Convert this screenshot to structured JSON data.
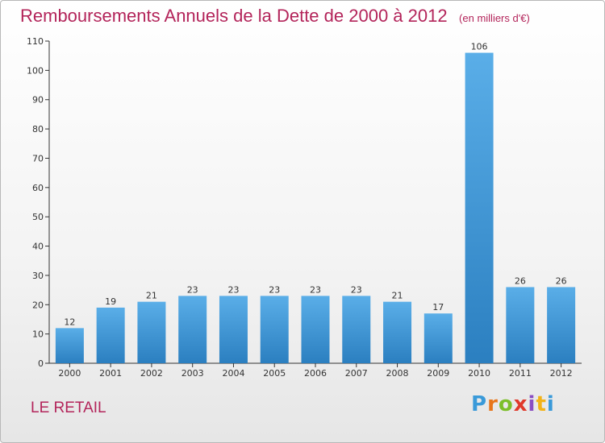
{
  "title": "Remboursements Annuels de la Dette de 2000 à 2012",
  "unit_label": "(en milliers d'€)",
  "commune": "LE RETAIL",
  "brand": {
    "letters": [
      "P",
      "r",
      "o",
      "x",
      "i",
      "t",
      "i"
    ],
    "colors": [
      "#3a9ad9",
      "#e8761a",
      "#7cbf2a",
      "#e0392b",
      "#8a4ec2",
      "#f2b317",
      "#3a9ad9"
    ]
  },
  "colors": {
    "bar_top": "#5aaee8",
    "bar_bottom": "#2b7fc0",
    "title": "#b3245a",
    "axis": "#333333"
  },
  "chart_data": {
    "type": "bar",
    "title": "Remboursements Annuels de la Dette de 2000 à 2012",
    "categories": [
      "2000",
      "2001",
      "2002",
      "2003",
      "2004",
      "2005",
      "2006",
      "2007",
      "2008",
      "2009",
      "2010",
      "2011",
      "2012"
    ],
    "values": [
      12,
      19,
      21,
      23,
      23,
      23,
      23,
      23,
      21,
      17,
      106,
      26,
      26
    ],
    "ylim": [
      0,
      110
    ],
    "yticks": [
      0,
      10,
      20,
      30,
      40,
      50,
      60,
      70,
      80,
      90,
      100,
      110
    ],
    "xlabel": "",
    "ylabel": "",
    "grid": false,
    "legend": "none"
  }
}
